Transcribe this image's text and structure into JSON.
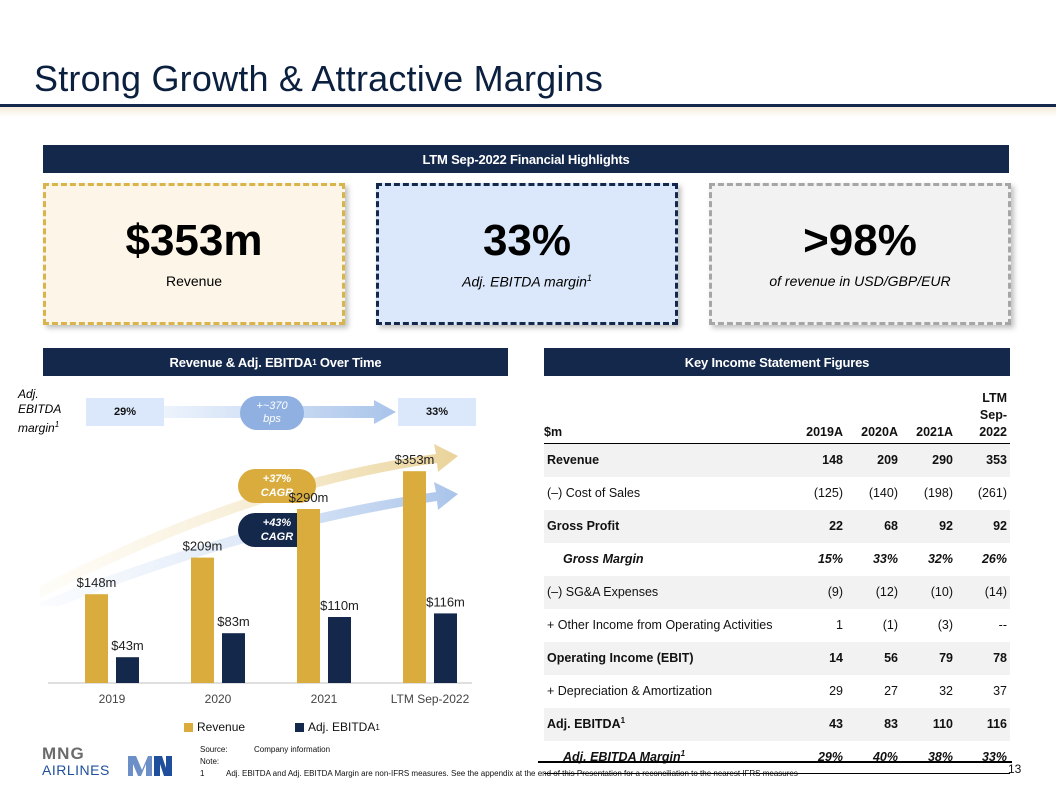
{
  "title": "Strong Growth & Attractive Margins",
  "highlights_bar": "LTM Sep-2022 Financial Highlights",
  "kpis": [
    {
      "value": "$353m",
      "label": "Revenue"
    },
    {
      "value": "33%",
      "label": "Adj. EBITDA margin",
      "sup": "1"
    },
    {
      "value": ">98%",
      "label": "of revenue in USD/GBP/EUR"
    }
  ],
  "chart_section_title": "Revenue & Adj. EBITDA",
  "chart_section_title_sup": "1",
  "chart_section_title_tail": " Over Time",
  "table_section_title": "Key Income Statement Figures",
  "margin_label": {
    "l1": "Adj.",
    "l2": "EBITDA",
    "l3": "margin",
    "sup": "1"
  },
  "margin_pills": {
    "start": "29%",
    "end": "33%",
    "change_l1": "+~370",
    "change_l2": "bps"
  },
  "cagr": {
    "revenue": {
      "l1": "+37%",
      "l2": "CAGR"
    },
    "ebitda": {
      "l1": "+43%",
      "l2": "CAGR"
    }
  },
  "chart_data": {
    "type": "bar",
    "categories": [
      "2019",
      "2020",
      "2021",
      "LTM Sep-2022"
    ],
    "series": [
      {
        "name": "Revenue",
        "values": [
          148,
          209,
          290,
          353
        ],
        "labels": [
          "$148m",
          "$209m",
          "$290m",
          "$353m"
        ],
        "color": "#d9ac3d"
      },
      {
        "name": "Adj. EBITDA",
        "values": [
          43,
          83,
          110,
          116
        ],
        "labels": [
          "$43m",
          "$83m",
          "$110m",
          "$116m"
        ],
        "color": "#14284b"
      }
    ],
    "ylim": [
      0,
      400
    ],
    "legend": {
      "position": "bottom",
      "revenue": "Revenue",
      "ebitda": "Adj. EBITDA",
      "ebitda_sup": "1"
    }
  },
  "table": {
    "headers": [
      "$m",
      "2019A",
      "2020A",
      "2021A",
      "LTM",
      "Sep-2022"
    ],
    "rows": [
      {
        "label": "Revenue",
        "values": [
          "148",
          "209",
          "290",
          "353"
        ]
      },
      {
        "label": "(–) Cost of Sales",
        "values": [
          "(125)",
          "(140)",
          "(198)",
          "(261)"
        ]
      },
      {
        "label": "Gross Profit",
        "values": [
          "22",
          "68",
          "92",
          "92"
        ]
      },
      {
        "label": "Gross Margin",
        "values": [
          "15%",
          "33%",
          "32%",
          "26%"
        ]
      },
      {
        "label": "(–) SG&A Expenses",
        "values": [
          "(9)",
          "(12)",
          "(10)",
          "(14)"
        ]
      },
      {
        "label": "+ Other Income from Operating Activities",
        "values": [
          "1",
          "(1)",
          "(3)",
          "--"
        ]
      },
      {
        "label": "Operating Income (EBIT)",
        "values": [
          "14",
          "56",
          "79",
          "78"
        ]
      },
      {
        "label": "+ Depreciation & Amortization",
        "values": [
          "29",
          "27",
          "32",
          "37"
        ]
      },
      {
        "label": "Adj. EBITDA",
        "sup": "1",
        "values": [
          "43",
          "83",
          "110",
          "116"
        ]
      },
      {
        "label": "Adj. EBITDA Margin",
        "sup": "1",
        "values": [
          "29%",
          "40%",
          "38%",
          "33%"
        ]
      }
    ]
  },
  "logo": {
    "l1": "MNG",
    "l2": "AIRLINES"
  },
  "footnotes": {
    "source_key": "Source:",
    "source_val": "Company information",
    "note_key": "Note:",
    "n1_key": "1",
    "n1_val": "Adj. EBITDA and Adj. EBITDA Margin are non-IFRS measures. See the appendix at the end of this Presentation for a reconciliation to the nearest IFRS measures"
  },
  "page_number": "13",
  "colors": {
    "navy": "#14284b",
    "gold": "#d9ac3d",
    "light_blue": "#dbe8fb"
  }
}
